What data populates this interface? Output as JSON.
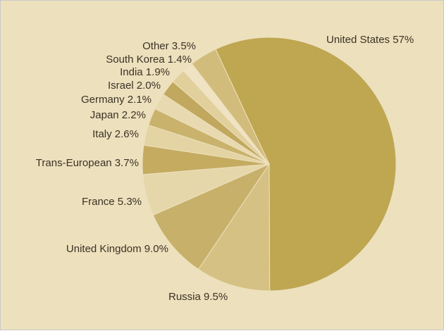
{
  "chart_data": {
    "type": "pie",
    "title": "",
    "slices": [
      {
        "label": "United States 57%",
        "name": "United States",
        "value": 57,
        "color": "#bfa651"
      },
      {
        "label": "Russia 9.5%",
        "name": "Russia",
        "value": 9.5,
        "color": "#d6c184"
      },
      {
        "label": "United Kingdom 9.0%",
        "name": "United Kingdom",
        "value": 9.0,
        "color": "#c7b06a"
      },
      {
        "label": "France 5.3%",
        "name": "France",
        "value": 5.3,
        "color": "#e6d7ab"
      },
      {
        "label": "Trans-European 3.7%",
        "name": "Trans-European",
        "value": 3.7,
        "color": "#c4ab60"
      },
      {
        "label": "Italy 2.6%",
        "name": "Italy",
        "value": 2.6,
        "color": "#e4d3a3"
      },
      {
        "label": "Japan 2.2%",
        "name": "Japan",
        "value": 2.2,
        "color": "#c9b26b"
      },
      {
        "label": "Germany 2.1%",
        "name": "Germany",
        "value": 2.1,
        "color": "#e8d9b0"
      },
      {
        "label": "Israel 2.0%",
        "name": "Israel",
        "value": 2.0,
        "color": "#c1a85e"
      },
      {
        "label": "India 1.9%",
        "name": "India",
        "value": 1.9,
        "color": "#e1cf9c"
      },
      {
        "label": "South Korea 1.4%",
        "name": "South Korea",
        "value": 1.4,
        "color": "#efe3c3"
      },
      {
        "label": "Other 3.5%",
        "name": "Other",
        "value": 3.5,
        "color": "#d2bc7c"
      }
    ],
    "legend": "none",
    "background": "#ede0bd"
  }
}
